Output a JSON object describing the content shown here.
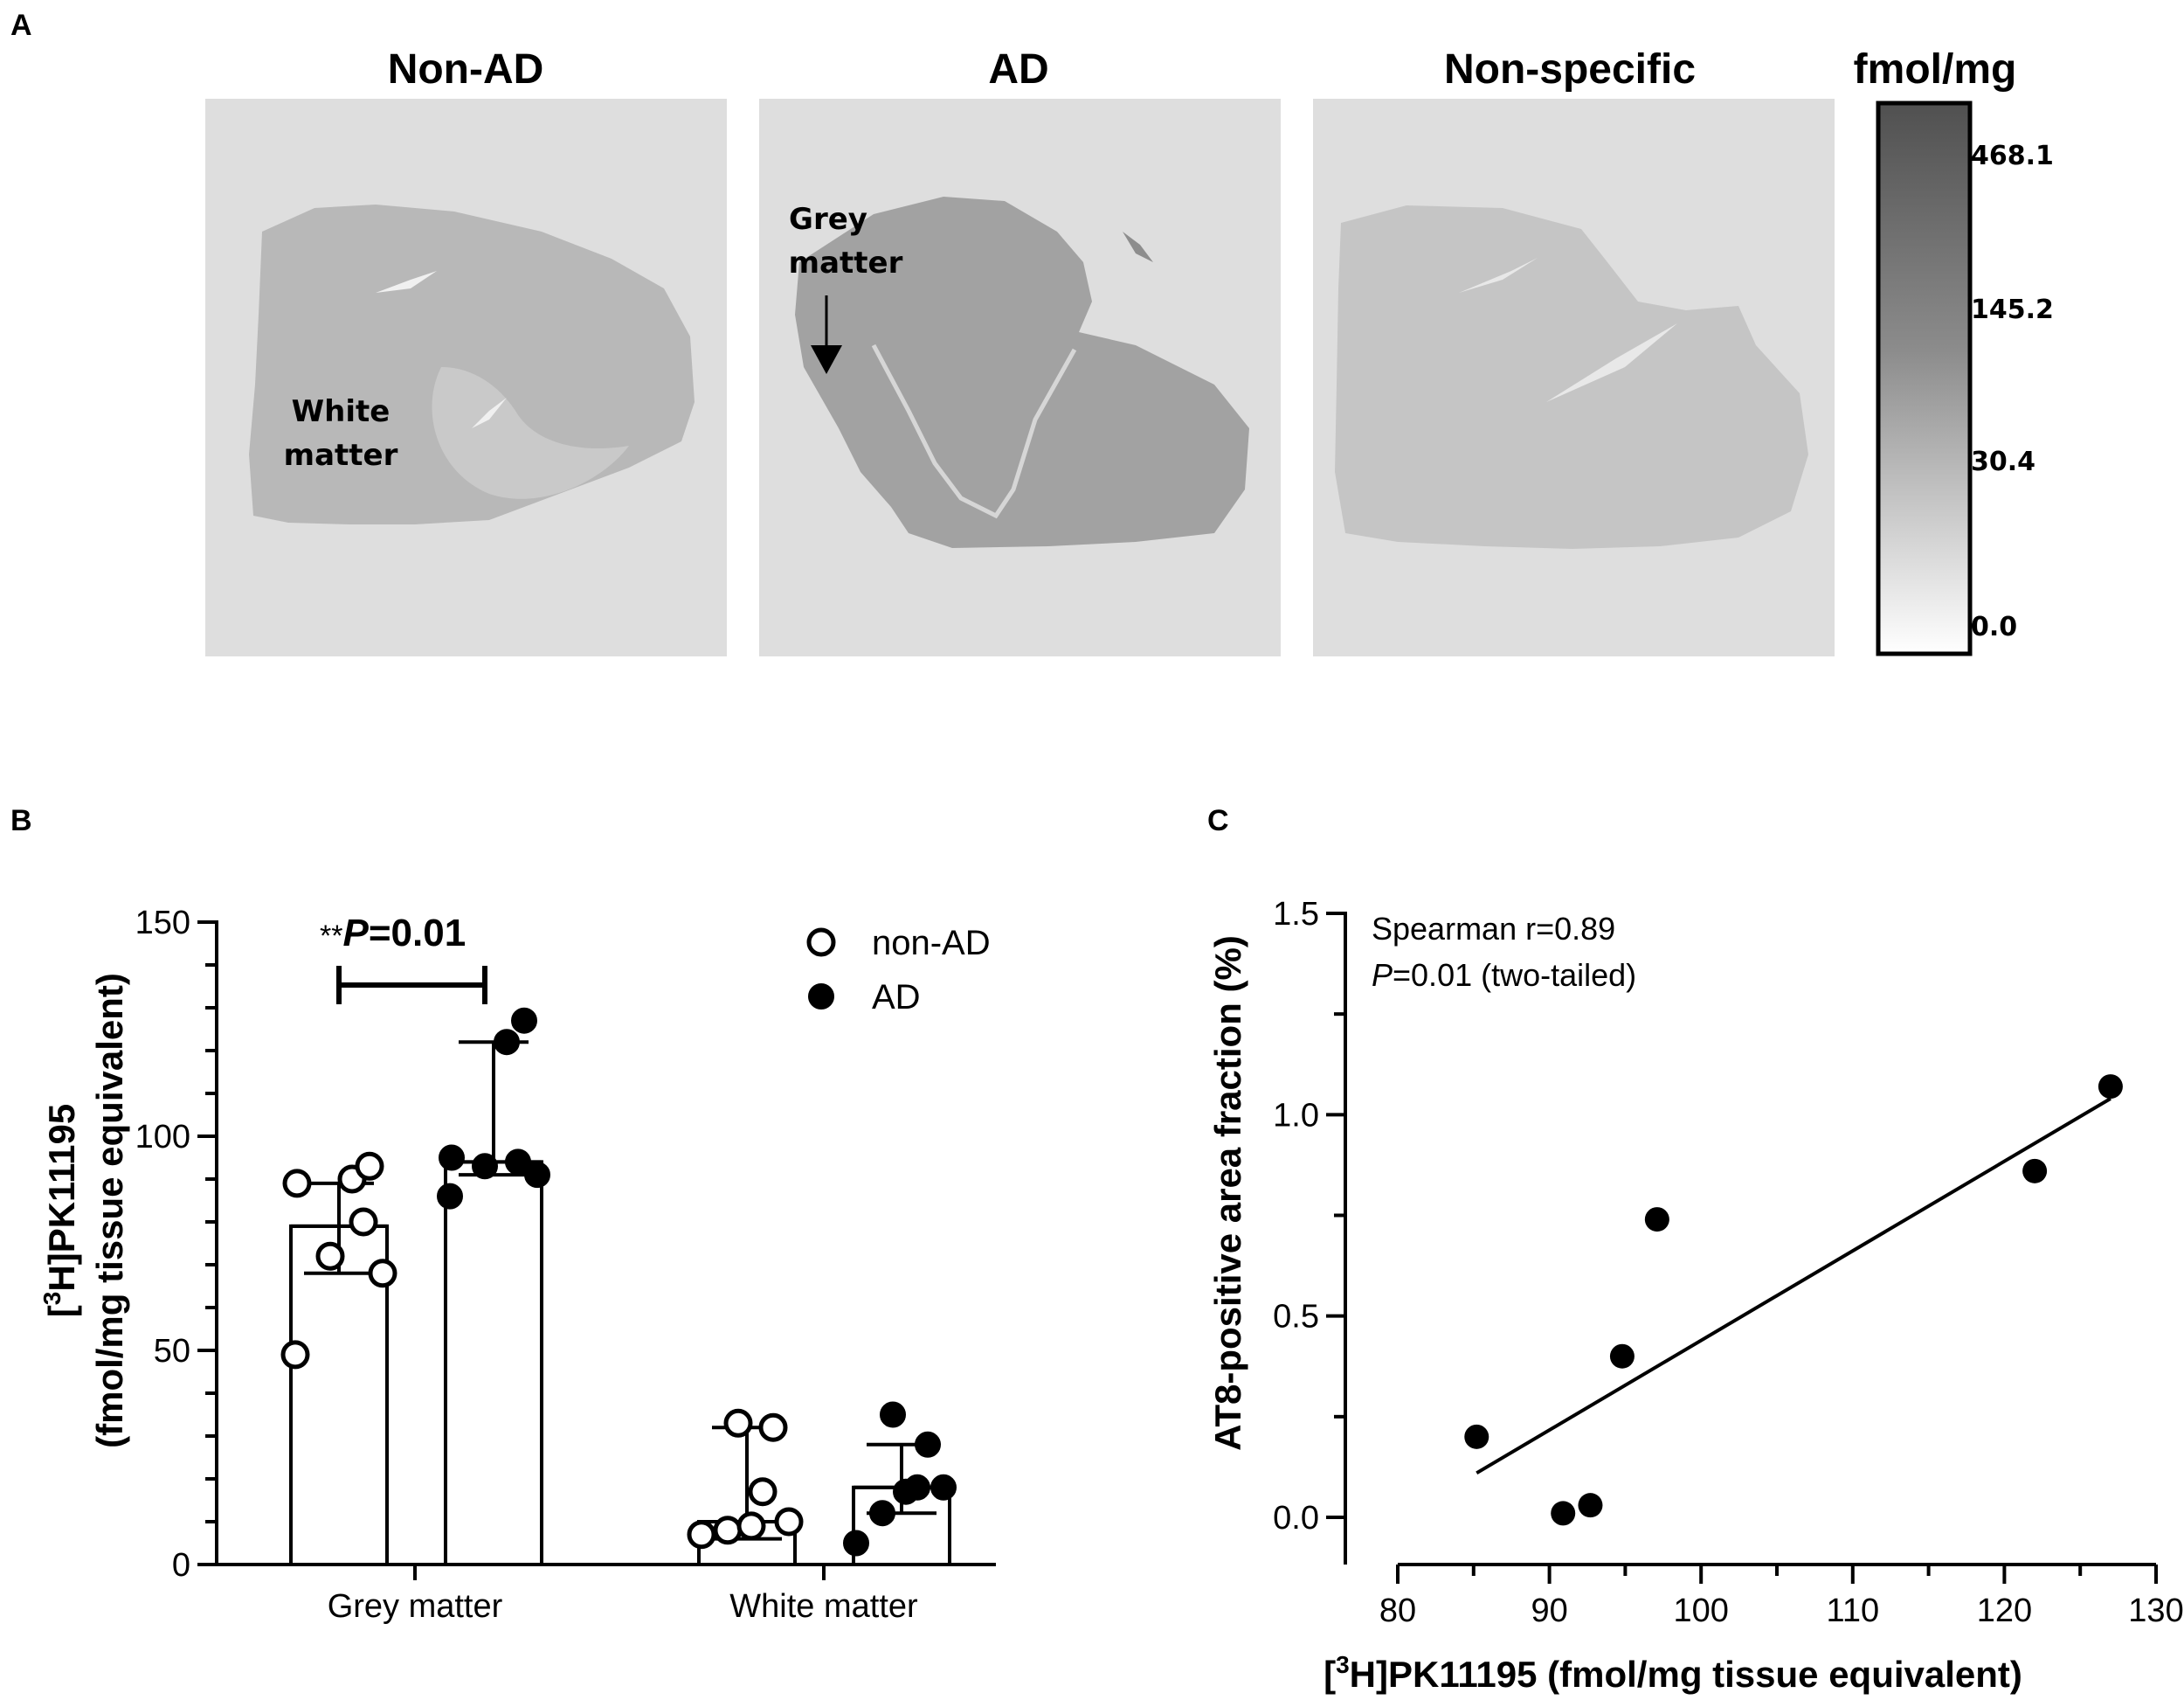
{
  "panel_a": {
    "letter": "A",
    "titles": [
      "Non-AD",
      "AD",
      "Non-specific"
    ],
    "label_white_matter": [
      "White",
      "matter"
    ],
    "label_grey_matter": [
      "Grey",
      "matter"
    ],
    "colorbar_unit": "fmol/mg",
    "colorbar_ticks": [
      "468.1",
      "145.2",
      "30.4",
      "0.0"
    ],
    "colors": {
      "background": "#dddddd",
      "tissue_nonad": "#b9b9b9",
      "tissue_ad": "#a3a3a3",
      "tissue_ns": "#c6c6c6"
    }
  },
  "chart_data": [
    {
      "panel": "B",
      "type": "bar",
      "categories": [
        "Grey matter",
        "White matter"
      ],
      "ylabel_lines": [
        "[3H]PK11195",
        "(fmol/mg tissue equivalent)"
      ],
      "ylim": [
        0,
        150
      ],
      "yticks": [
        0,
        50,
        100,
        150
      ],
      "legend": {
        "placement": "top-right"
      },
      "series": [
        {
          "name": "non-AD",
          "marker": "open-circle",
          "values": [
            79,
            10
          ],
          "error_range": [
            [
              68,
              89
            ],
            [
              6,
              32
            ]
          ],
          "points": [
            [
              49,
              68,
              72,
              80,
              89,
              90,
              93
            ],
            [
              7,
              8,
              9,
              10,
              17,
              32,
              33
            ]
          ]
        },
        {
          "name": "AD",
          "marker": "filled-circle",
          "values": [
            94,
            18
          ],
          "error_range": [
            [
              91,
              122
            ],
            [
              12,
              28
            ]
          ],
          "points": [
            [
              86,
              91,
              93,
              94,
              95,
              122,
              127
            ],
            [
              5,
              12,
              17,
              18,
              18,
              28,
              35
            ]
          ]
        }
      ],
      "annotation": {
        "stars": "**",
        "p_label": "P",
        "p_value": "=0.01"
      }
    },
    {
      "panel": "C",
      "type": "scatter",
      "xlabel_parts": [
        "[",
        "3",
        "H]PK11195 (fmol/mg tissue equivalent)"
      ],
      "ylabel": "AT8-positive area fraction (%)",
      "xlim": [
        80,
        130
      ],
      "ylim": [
        -0.05,
        1.5
      ],
      "xticks": [
        80,
        90,
        100,
        110,
        120,
        130
      ],
      "yticks": [
        "0.0",
        "0.5",
        "1.0",
        "1.5"
      ],
      "points": [
        {
          "x": 85.2,
          "y": 0.2
        },
        {
          "x": 90.9,
          "y": 0.01
        },
        {
          "x": 92.7,
          "y": 0.03
        },
        {
          "x": 94.8,
          "y": 0.4
        },
        {
          "x": 97.1,
          "y": 0.74
        },
        {
          "x": 122.0,
          "y": 0.86
        },
        {
          "x": 127.0,
          "y": 1.07
        }
      ],
      "fit_line": [
        [
          85.2,
          0.11
        ],
        [
          127.0,
          1.04
        ]
      ],
      "annotation_line1": "Spearman r=0.89",
      "annotation_line2_p": "P",
      "annotation_line2_rest": "=0.01 (two-tailed)"
    }
  ]
}
